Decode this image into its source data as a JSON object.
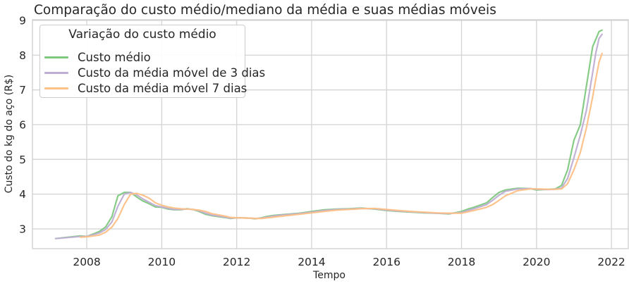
{
  "chart_data": {
    "type": "line",
    "title": "Comparação do custo médio/mediano da média e suas médias móveis",
    "xlabel": "Tempo",
    "ylabel": "Custo do kg do aço (R$)",
    "xlim": [
      2006.55,
      2022.45
    ],
    "ylim": [
      2.43,
      9.02
    ],
    "x_ticks": [
      "2008",
      "2010",
      "2012",
      "2014",
      "2016",
      "2018",
      "2020",
      "2022"
    ],
    "y_ticks": [
      "3",
      "4",
      "5",
      "6",
      "7",
      "8",
      "9"
    ],
    "grid": true,
    "legend": {
      "title": "Variação do custo médio",
      "placement": "top-left"
    },
    "series": [
      {
        "name": "Custo médio",
        "color": "#7fc97f",
        "points": [
          [
            2007.17,
            2.72
          ],
          [
            2007.5,
            2.76
          ],
          [
            2007.83,
            2.8
          ],
          [
            2008.0,
            2.78
          ],
          [
            2008.33,
            2.92
          ],
          [
            2008.5,
            3.05
          ],
          [
            2008.67,
            3.35
          ],
          [
            2008.83,
            3.95
          ],
          [
            2009.0,
            4.05
          ],
          [
            2009.17,
            4.05
          ],
          [
            2009.33,
            3.92
          ],
          [
            2009.5,
            3.8
          ],
          [
            2009.67,
            3.72
          ],
          [
            2009.83,
            3.63
          ],
          [
            2010.0,
            3.62
          ],
          [
            2010.17,
            3.57
          ],
          [
            2010.33,
            3.55
          ],
          [
            2010.5,
            3.55
          ],
          [
            2010.67,
            3.58
          ],
          [
            2010.83,
            3.56
          ],
          [
            2011.0,
            3.5
          ],
          [
            2011.17,
            3.42
          ],
          [
            2011.33,
            3.38
          ],
          [
            2011.67,
            3.33
          ],
          [
            2011.83,
            3.3
          ],
          [
            2012.0,
            3.32
          ],
          [
            2012.33,
            3.31
          ],
          [
            2012.5,
            3.29
          ],
          [
            2012.67,
            3.32
          ],
          [
            2012.83,
            3.36
          ],
          [
            2013.0,
            3.39
          ],
          [
            2013.33,
            3.42
          ],
          [
            2013.67,
            3.45
          ],
          [
            2014.0,
            3.5
          ],
          [
            2014.33,
            3.55
          ],
          [
            2014.67,
            3.57
          ],
          [
            2015.0,
            3.58
          ],
          [
            2015.33,
            3.6
          ],
          [
            2015.67,
            3.57
          ],
          [
            2016.0,
            3.53
          ],
          [
            2016.33,
            3.5
          ],
          [
            2016.67,
            3.48
          ],
          [
            2017.0,
            3.46
          ],
          [
            2017.33,
            3.45
          ],
          [
            2017.67,
            3.43
          ],
          [
            2018.0,
            3.5
          ],
          [
            2018.17,
            3.57
          ],
          [
            2018.33,
            3.62
          ],
          [
            2018.67,
            3.75
          ],
          [
            2018.83,
            3.9
          ],
          [
            2019.0,
            4.05
          ],
          [
            2019.17,
            4.12
          ],
          [
            2019.5,
            4.17
          ],
          [
            2019.83,
            4.16
          ],
          [
            2020.0,
            4.12
          ],
          [
            2020.33,
            4.14
          ],
          [
            2020.5,
            4.15
          ],
          [
            2020.67,
            4.25
          ],
          [
            2020.83,
            4.7
          ],
          [
            2021.0,
            5.55
          ],
          [
            2021.17,
            6.0
          ],
          [
            2021.33,
            7.1
          ],
          [
            2021.5,
            8.25
          ],
          [
            2021.58,
            8.45
          ],
          [
            2021.67,
            8.68
          ],
          [
            2021.75,
            8.72
          ]
        ]
      },
      {
        "name": "Custo da média móvel de 3 dias",
        "color": "#beaed4",
        "points": [
          [
            2007.17,
            2.72
          ],
          [
            2007.5,
            2.75
          ],
          [
            2007.83,
            2.78
          ],
          [
            2008.0,
            2.78
          ],
          [
            2008.33,
            2.88
          ],
          [
            2008.5,
            2.98
          ],
          [
            2008.67,
            3.2
          ],
          [
            2008.83,
            3.65
          ],
          [
            2009.0,
            4.0
          ],
          [
            2009.17,
            4.05
          ],
          [
            2009.33,
            3.98
          ],
          [
            2009.5,
            3.86
          ],
          [
            2009.67,
            3.76
          ],
          [
            2009.83,
            3.67
          ],
          [
            2010.0,
            3.63
          ],
          [
            2010.17,
            3.59
          ],
          [
            2010.33,
            3.56
          ],
          [
            2010.5,
            3.56
          ],
          [
            2010.67,
            3.57
          ],
          [
            2010.83,
            3.56
          ],
          [
            2011.0,
            3.52
          ],
          [
            2011.17,
            3.45
          ],
          [
            2011.33,
            3.4
          ],
          [
            2011.67,
            3.34
          ],
          [
            2011.83,
            3.31
          ],
          [
            2012.0,
            3.32
          ],
          [
            2012.33,
            3.31
          ],
          [
            2012.5,
            3.3
          ],
          [
            2012.67,
            3.31
          ],
          [
            2012.83,
            3.34
          ],
          [
            2013.0,
            3.37
          ],
          [
            2013.33,
            3.41
          ],
          [
            2013.67,
            3.44
          ],
          [
            2014.0,
            3.48
          ],
          [
            2014.33,
            3.53
          ],
          [
            2014.67,
            3.56
          ],
          [
            2015.0,
            3.57
          ],
          [
            2015.33,
            3.59
          ],
          [
            2015.67,
            3.58
          ],
          [
            2016.0,
            3.54
          ],
          [
            2016.33,
            3.51
          ],
          [
            2016.67,
            3.49
          ],
          [
            2017.0,
            3.47
          ],
          [
            2017.33,
            3.45
          ],
          [
            2017.67,
            3.44
          ],
          [
            2018.0,
            3.47
          ],
          [
            2018.17,
            3.53
          ],
          [
            2018.33,
            3.58
          ],
          [
            2018.67,
            3.7
          ],
          [
            2018.83,
            3.82
          ],
          [
            2019.0,
            3.97
          ],
          [
            2019.17,
            4.08
          ],
          [
            2019.5,
            4.15
          ],
          [
            2019.83,
            4.16
          ],
          [
            2020.0,
            4.14
          ],
          [
            2020.33,
            4.13
          ],
          [
            2020.5,
            4.14
          ],
          [
            2020.67,
            4.18
          ],
          [
            2020.83,
            4.45
          ],
          [
            2021.0,
            5.05
          ],
          [
            2021.17,
            5.7
          ],
          [
            2021.33,
            6.4
          ],
          [
            2021.5,
            7.5
          ],
          [
            2021.58,
            8.05
          ],
          [
            2021.67,
            8.48
          ],
          [
            2021.75,
            8.6
          ]
        ]
      },
      {
        "name": "Custo da média móvel 7 dias",
        "color": "#fdc086",
        "points": [
          [
            2007.83,
            2.76
          ],
          [
            2008.0,
            2.77
          ],
          [
            2008.33,
            2.82
          ],
          [
            2008.5,
            2.9
          ],
          [
            2008.67,
            3.05
          ],
          [
            2008.83,
            3.3
          ],
          [
            2009.0,
            3.7
          ],
          [
            2009.17,
            4.0
          ],
          [
            2009.33,
            4.02
          ],
          [
            2009.5,
            3.97
          ],
          [
            2009.67,
            3.88
          ],
          [
            2009.83,
            3.75
          ],
          [
            2010.0,
            3.68
          ],
          [
            2010.17,
            3.63
          ],
          [
            2010.33,
            3.6
          ],
          [
            2010.5,
            3.58
          ],
          [
            2010.67,
            3.57
          ],
          [
            2010.83,
            3.56
          ],
          [
            2011.0,
            3.54
          ],
          [
            2011.17,
            3.5
          ],
          [
            2011.33,
            3.44
          ],
          [
            2011.67,
            3.37
          ],
          [
            2011.83,
            3.33
          ],
          [
            2012.0,
            3.32
          ],
          [
            2012.33,
            3.31
          ],
          [
            2012.5,
            3.3
          ],
          [
            2012.67,
            3.3
          ],
          [
            2012.83,
            3.32
          ],
          [
            2013.0,
            3.34
          ],
          [
            2013.33,
            3.38
          ],
          [
            2013.67,
            3.42
          ],
          [
            2014.0,
            3.46
          ],
          [
            2014.33,
            3.5
          ],
          [
            2014.67,
            3.54
          ],
          [
            2015.0,
            3.56
          ],
          [
            2015.33,
            3.58
          ],
          [
            2015.67,
            3.59
          ],
          [
            2016.0,
            3.56
          ],
          [
            2016.33,
            3.53
          ],
          [
            2016.67,
            3.5
          ],
          [
            2017.0,
            3.48
          ],
          [
            2017.33,
            3.46
          ],
          [
            2017.67,
            3.45
          ],
          [
            2018.0,
            3.45
          ],
          [
            2018.17,
            3.49
          ],
          [
            2018.33,
            3.53
          ],
          [
            2018.67,
            3.62
          ],
          [
            2018.83,
            3.7
          ],
          [
            2019.0,
            3.82
          ],
          [
            2019.17,
            3.95
          ],
          [
            2019.5,
            4.1
          ],
          [
            2019.83,
            4.15
          ],
          [
            2020.0,
            4.15
          ],
          [
            2020.33,
            4.14
          ],
          [
            2020.5,
            4.14
          ],
          [
            2020.67,
            4.15
          ],
          [
            2020.83,
            4.3
          ],
          [
            2021.0,
            4.7
          ],
          [
            2021.17,
            5.2
          ],
          [
            2021.33,
            5.9
          ],
          [
            2021.5,
            6.8
          ],
          [
            2021.58,
            7.3
          ],
          [
            2021.67,
            7.8
          ],
          [
            2021.75,
            8.05
          ]
        ]
      }
    ]
  }
}
